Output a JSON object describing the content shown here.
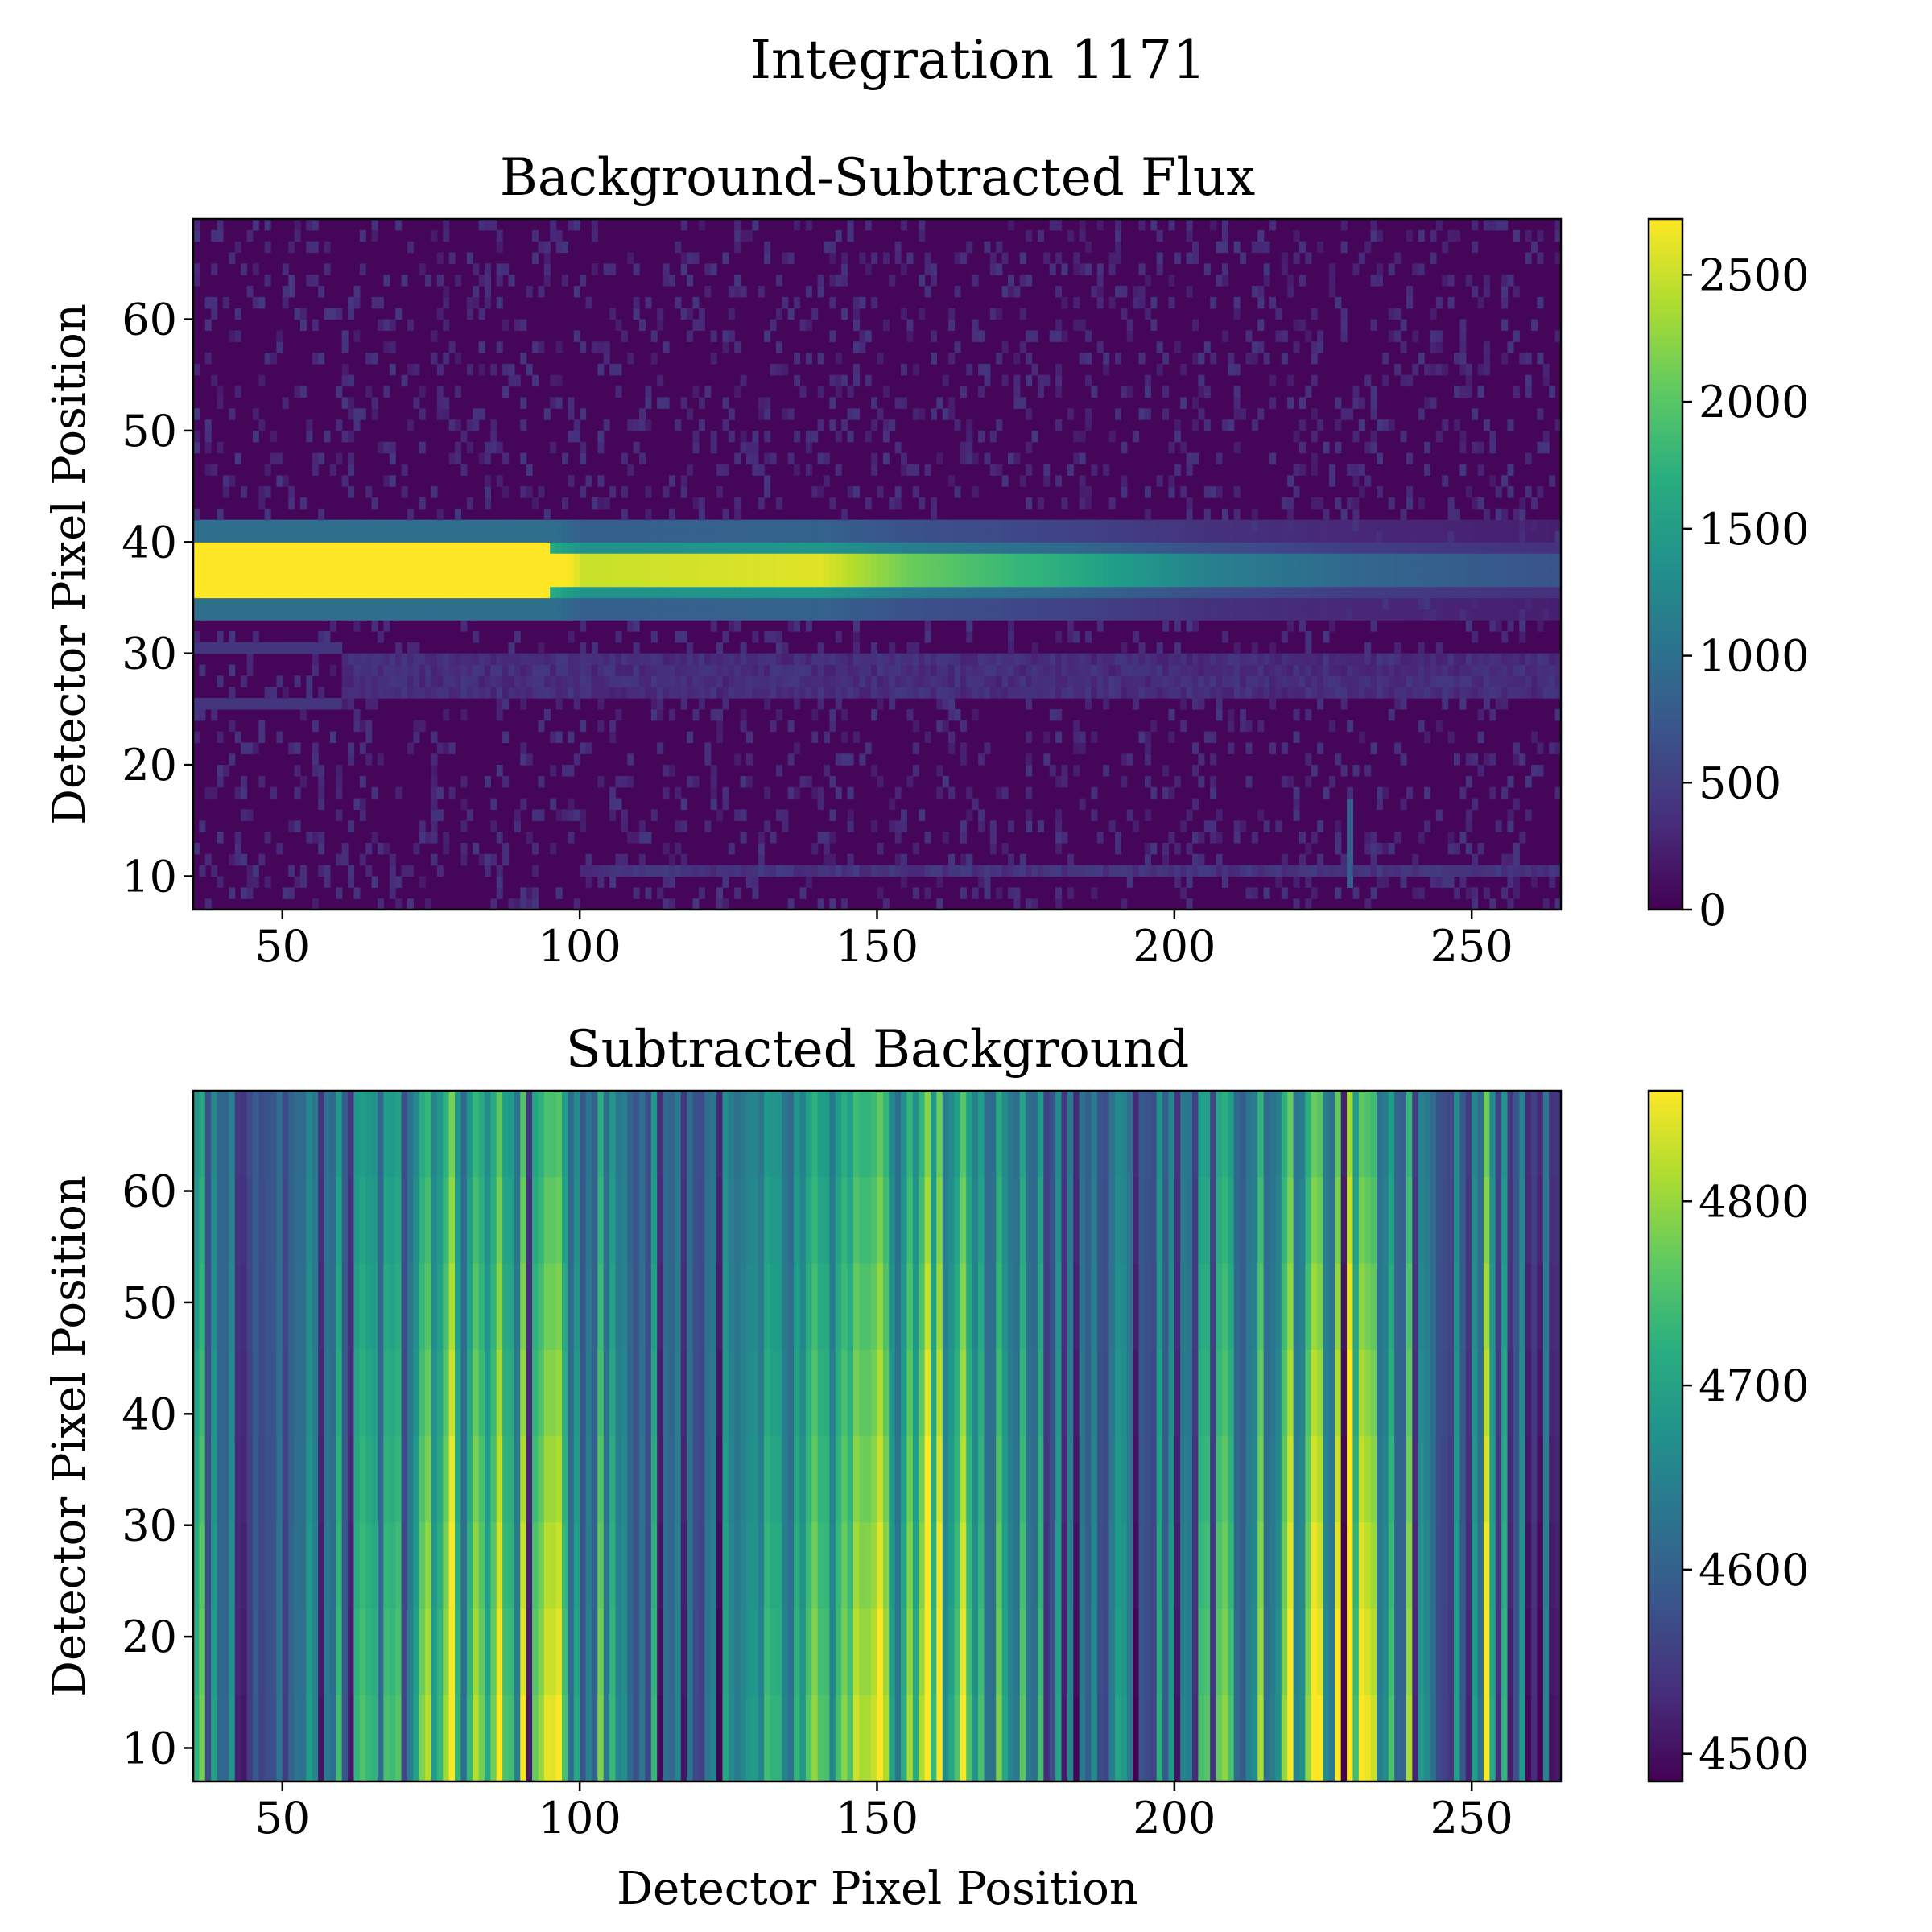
{
  "figure": {
    "suptitle": "Integration 1171"
  },
  "chart_data": [
    {
      "type": "heatmap",
      "title": "Background-Subtracted Flux",
      "xlabel": "",
      "ylabel": "Detector Pixel Position",
      "xlim": [
        35,
        265
      ],
      "ylim": [
        7,
        69
      ],
      "xticks": [
        50,
        100,
        150,
        200,
        250
      ],
      "yticks": [
        10,
        20,
        30,
        40,
        50,
        60
      ],
      "colormap": "viridis",
      "colorbar": {
        "vmin": 0,
        "vmax": 2720,
        "ticks": [
          0,
          500,
          1000,
          1500,
          2000,
          2500
        ]
      },
      "background_level": 40,
      "features": [
        {
          "label": "spectral trace",
          "y_center": 37.5,
          "x_range": [
            35,
            265
          ],
          "peak_by_x": [
            [
              35,
              3000
            ],
            [
              95,
              3000
            ],
            [
              100,
              2500
            ],
            [
              140,
              2600
            ],
            [
              155,
              2100
            ],
            [
              180,
              1700
            ],
            [
              205,
              1200
            ],
            [
              230,
              900
            ],
            [
              265,
              700
            ]
          ]
        },
        {
          "label": "secondary order",
          "y_center": 28,
          "x_range": [
            60,
            265
          ],
          "level": 350
        },
        {
          "label": "horizontal streak",
          "y_center": 10.5,
          "x_range": [
            100,
            265
          ],
          "level": 420
        },
        {
          "label": "hot column",
          "x": 229,
          "y_range": [
            9,
            17
          ],
          "level": 800
        }
      ]
    },
    {
      "type": "heatmap",
      "title": "Subtracted Background",
      "xlabel": "Detector Pixel Position",
      "ylabel": "Detector Pixel Position",
      "xlim": [
        35,
        265
      ],
      "ylim": [
        7,
        69
      ],
      "xticks": [
        50,
        100,
        150,
        200,
        250
      ],
      "yticks": [
        10,
        20,
        30,
        40,
        50,
        60
      ],
      "colormap": "viridis",
      "colorbar": {
        "vmin": 4485,
        "vmax": 4860,
        "ticks": [
          4500,
          4600,
          4700,
          4800
        ]
      },
      "column_mean": 4660,
      "bright_columns": [
        {
          "x": 78,
          "value": 4830
        },
        {
          "x": 94,
          "value": 4790
        },
        {
          "x": 158,
          "value": 4840
        },
        {
          "x": 160,
          "value": 4820
        },
        {
          "x": 229,
          "value": 4860
        },
        {
          "x": 252,
          "value": 4820
        }
      ],
      "dark_columns": [
        {
          "x": 91,
          "value": 4530
        },
        {
          "x": 228,
          "value": 4500
        },
        {
          "x": 240,
          "value": 4540
        }
      ]
    }
  ]
}
